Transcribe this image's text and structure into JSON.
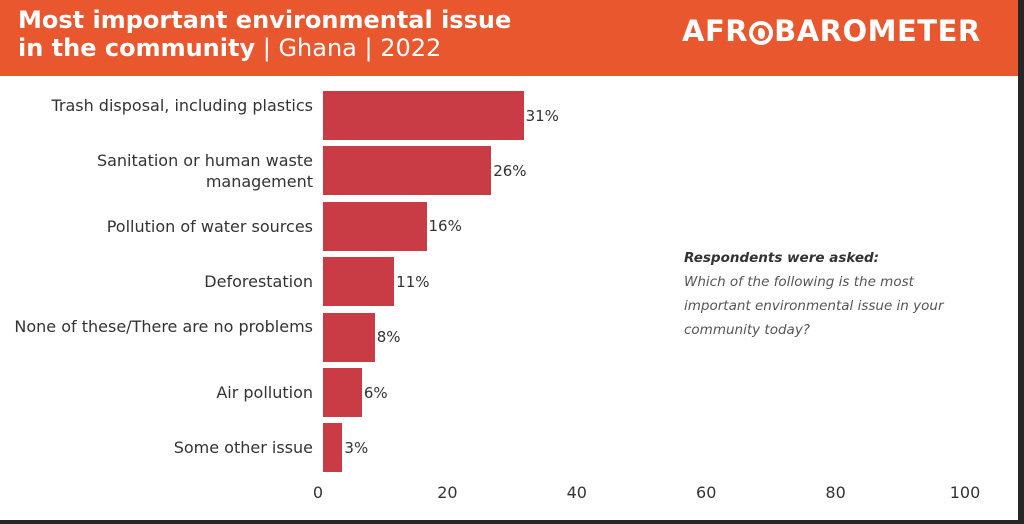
{
  "header": {
    "title_line1": "Most important environmental issue",
    "title_line2_bold": "in the community",
    "title_line2_light": " | Ghana | 2022",
    "logo_left": "AFR",
    "logo_right": "BAROMETER",
    "logo_icon": "africa-map-icon"
  },
  "colors": {
    "header": "#e8572e",
    "bar": "#c93c46"
  },
  "note": {
    "heading": "Respondents were asked:",
    "body": "Which of the following is the most important environmental issue in your community today?"
  },
  "chart_data": {
    "type": "bar",
    "orientation": "horizontal",
    "categories": [
      "Trash disposal, including plastics",
      "Sanitation or human waste management",
      "Pollution of water sources",
      "Deforestation",
      "None of these/There are no problems",
      "Air pollution",
      "Some other issue"
    ],
    "values": [
      31,
      26,
      16,
      11,
      8,
      6,
      3
    ],
    "value_labels": [
      "31%",
      "26%",
      "16%",
      "11%",
      "8%",
      "6%",
      "3%"
    ],
    "xlim": [
      0,
      100
    ],
    "xticks": [
      0,
      20,
      40,
      60,
      80,
      100
    ],
    "xtick_labels": [
      "0",
      "20",
      "40",
      "60",
      "80",
      "100"
    ],
    "grid": false,
    "legend": "none"
  }
}
